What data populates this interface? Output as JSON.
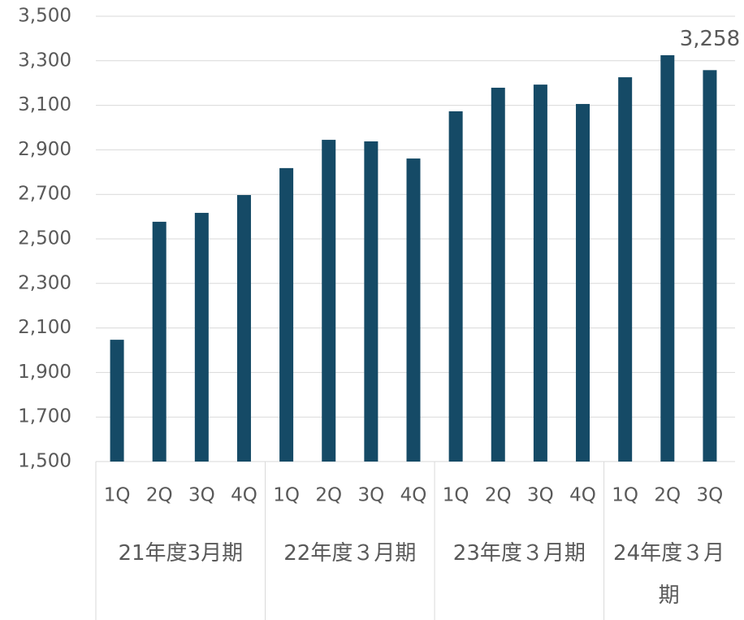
{
  "chart_data": {
    "type": "bar",
    "categories": [
      "1Q",
      "2Q",
      "3Q",
      "4Q",
      "1Q",
      "2Q",
      "3Q",
      "4Q",
      "1Q",
      "2Q",
      "3Q",
      "4Q",
      "1Q",
      "2Q",
      "3Q"
    ],
    "groups": [
      {
        "label": "21年度3月期",
        "span": 4
      },
      {
        "label": "22年度３月期",
        "span": 4
      },
      {
        "label": "23年度３月期",
        "span": 4
      },
      {
        "label": "24年度３月期",
        "span": 3
      }
    ],
    "values": [
      2047,
      2577,
      2617,
      2697,
      2818,
      2945,
      2938,
      2861,
      3073,
      3179,
      3193,
      3106,
      3226,
      3325,
      3258
    ],
    "value_labels": [
      null,
      null,
      null,
      null,
      null,
      null,
      null,
      null,
      null,
      null,
      null,
      null,
      null,
      null,
      "3,258"
    ],
    "color": "#154a66",
    "ylim": [
      1500,
      3500
    ],
    "yticks": [
      {
        "value": 1500,
        "label": "1,500"
      },
      {
        "value": 1700,
        "label": "1,700"
      },
      {
        "value": 1900,
        "label": "1,900"
      },
      {
        "value": 2100,
        "label": "2,100"
      },
      {
        "value": 2300,
        "label": "2,300"
      },
      {
        "value": 2500,
        "label": "2,500"
      },
      {
        "value": 2700,
        "label": "2,700"
      },
      {
        "value": 2900,
        "label": "2,900"
      },
      {
        "value": 3100,
        "label": "3,100"
      },
      {
        "value": 3300,
        "label": "3,300"
      },
      {
        "value": 3500,
        "label": "3,500"
      }
    ],
    "grid": true
  }
}
